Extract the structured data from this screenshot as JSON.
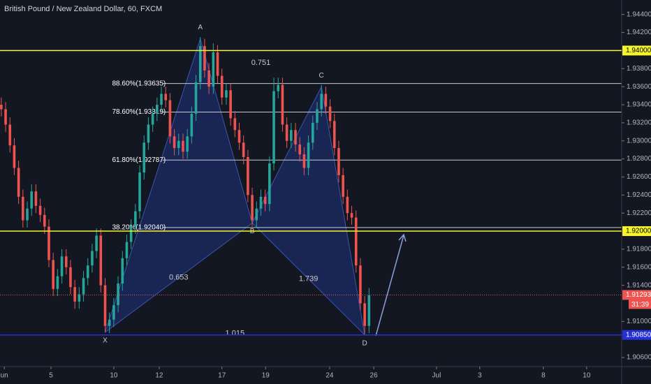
{
  "chart_data": {
    "type": "candlestick",
    "title": "British Pound / New Zealand Dollar, 60, FXCM",
    "up_color": "#26a69a",
    "down_color": "#ef5350",
    "open": [
      1.934,
      1.9335,
      1.9318,
      1.9295,
      1.927,
      1.9238,
      1.9212,
      1.9225,
      1.9244,
      1.9228,
      1.9218,
      1.9205,
      1.9168,
      1.9136,
      1.915,
      1.9172,
      1.916,
      1.9138,
      1.9122,
      1.913,
      1.9148,
      1.9162,
      1.9178,
      1.9195,
      1.914,
      1.9095,
      1.9102,
      1.9118,
      1.9142,
      1.917,
      1.9188,
      1.9205,
      1.9222,
      1.9265,
      1.9298,
      1.9318,
      1.933,
      1.934,
      1.9352,
      1.9345,
      1.9305,
      1.9292,
      1.93,
      1.9288,
      1.9305,
      1.933,
      1.9365,
      1.9405,
      1.9378,
      1.936,
      1.9398,
      1.9372,
      1.9348,
      1.9356,
      1.9325,
      1.9312,
      1.9298,
      1.9282,
      1.924,
      1.9212,
      1.9225,
      1.9238,
      1.923,
      1.9275,
      1.9355,
      1.9362,
      1.9318,
      1.93,
      1.9312,
      1.9296,
      1.9285,
      1.927,
      1.9298,
      1.932,
      1.9335,
      1.9352,
      1.9338,
      1.9322,
      1.9292,
      1.9262,
      1.9238,
      1.922,
      1.9215,
      1.9162,
      1.912,
      1.9095
    ],
    "high": [
      1.9348,
      1.9343,
      1.9326,
      1.9303,
      1.9278,
      1.9246,
      1.9233,
      1.9252,
      1.9252,
      1.9236,
      1.9226,
      1.9213,
      1.9176,
      1.9158,
      1.918,
      1.918,
      1.9168,
      1.9146,
      1.9138,
      1.9156,
      1.917,
      1.9186,
      1.9203,
      1.9203,
      1.9148,
      1.911,
      1.9126,
      1.915,
      1.9178,
      1.9196,
      1.9213,
      1.923,
      1.9273,
      1.9306,
      1.9326,
      1.9338,
      1.9348,
      1.936,
      1.936,
      1.9353,
      1.9313,
      1.9308,
      1.9308,
      1.9313,
      1.9338,
      1.9373,
      1.9415,
      1.9413,
      1.9386,
      1.9408,
      1.9406,
      1.938,
      1.9364,
      1.9364,
      1.9333,
      1.932,
      1.9306,
      1.929,
      1.9248,
      1.9233,
      1.9246,
      1.9246,
      1.9283,
      1.937,
      1.937,
      1.937,
      1.9326,
      1.932,
      1.932,
      1.9304,
      1.9293,
      1.9306,
      1.9328,
      1.9343,
      1.9362,
      1.936,
      1.9346,
      1.933,
      1.93,
      1.927,
      1.9246,
      1.9228,
      1.9223,
      1.917,
      1.9128,
      1.9137
    ],
    "low": [
      1.9327,
      1.931,
      1.9287,
      1.9262,
      1.923,
      1.9204,
      1.9204,
      1.9217,
      1.922,
      1.921,
      1.9197,
      1.916,
      1.9128,
      1.9128,
      1.9142,
      1.9152,
      1.913,
      1.9114,
      1.9114,
      1.9122,
      1.914,
      1.9154,
      1.917,
      1.9132,
      1.9088,
      1.9087,
      1.9094,
      1.911,
      1.9134,
      1.9162,
      1.918,
      1.9197,
      1.9214,
      1.9257,
      1.929,
      1.931,
      1.9322,
      1.9332,
      1.9337,
      1.9297,
      1.9284,
      1.9284,
      1.928,
      1.928,
      1.9297,
      1.9322,
      1.9357,
      1.937,
      1.9352,
      1.9352,
      1.9364,
      1.934,
      1.934,
      1.9317,
      1.9304,
      1.929,
      1.9274,
      1.9232,
      1.9205,
      1.9204,
      1.9217,
      1.9222,
      1.9222,
      1.9267,
      1.9347,
      1.931,
      1.9292,
      1.9292,
      1.9288,
      1.9277,
      1.9262,
      1.9262,
      1.929,
      1.9312,
      1.9327,
      1.933,
      1.9314,
      1.9284,
      1.9254,
      1.923,
      1.9212,
      1.9207,
      1.9154,
      1.9112,
      1.9086,
      1.9087
    ],
    "close": [
      1.9335,
      1.9318,
      1.9295,
      1.927,
      1.9238,
      1.9212,
      1.9225,
      1.9244,
      1.9228,
      1.9218,
      1.9205,
      1.9168,
      1.9136,
      1.915,
      1.9172,
      1.916,
      1.9138,
      1.9122,
      1.913,
      1.9148,
      1.9162,
      1.9178,
      1.9195,
      1.914,
      1.9095,
      1.9102,
      1.9118,
      1.9142,
      1.917,
      1.9188,
      1.9205,
      1.9222,
      1.9265,
      1.9298,
      1.9318,
      1.933,
      1.934,
      1.9352,
      1.9345,
      1.9305,
      1.9292,
      1.93,
      1.9288,
      1.9305,
      1.933,
      1.9365,
      1.9405,
      1.9378,
      1.936,
      1.9398,
      1.9372,
      1.9348,
      1.9356,
      1.9325,
      1.9312,
      1.9298,
      1.9282,
      1.924,
      1.9212,
      1.9225,
      1.9238,
      1.923,
      1.9275,
      1.9355,
      1.9362,
      1.9318,
      1.93,
      1.9312,
      1.9296,
      1.9285,
      1.927,
      1.9298,
      1.932,
      1.9335,
      1.9352,
      1.9338,
      1.9322,
      1.9292,
      1.9262,
      1.9238,
      1.922,
      1.9215,
      1.9162,
      1.912,
      1.9095,
      1.9129
    ],
    "xlim": [
      -0.3,
      143.4
    ],
    "xticks": [
      {
        "value": 0.7,
        "label": "un"
      },
      {
        "value": 11.5,
        "label": "5"
      },
      {
        "value": 26.0,
        "label": "10"
      },
      {
        "value": 36.5,
        "label": "12"
      },
      {
        "value": 51.0,
        "label": "17"
      },
      {
        "value": 61.1,
        "label": "19"
      },
      {
        "value": 75.9,
        "label": "24"
      },
      {
        "value": 86.1,
        "label": "26"
      },
      {
        "value": 100.6,
        "label": "Jul"
      },
      {
        "value": 110.6,
        "label": "3"
      },
      {
        "value": 125.3,
        "label": "8"
      },
      {
        "value": 135.3,
        "label": "10"
      }
    ],
    "ylim": [
      1.905,
      1.9456
    ],
    "yticks": [
      {
        "value": 1.944,
        "label": "1.94400"
      },
      {
        "value": 1.942,
        "label": "1.94200"
      },
      {
        "value": 1.938,
        "label": "1.93800"
      },
      {
        "value": 1.936,
        "label": "1.93600"
      },
      {
        "value": 1.934,
        "label": "1.93400"
      },
      {
        "value": 1.932,
        "label": "1.93200"
      },
      {
        "value": 1.93,
        "label": "1.93000"
      },
      {
        "value": 1.928,
        "label": "1.92800"
      },
      {
        "value": 1.926,
        "label": "1.92600"
      },
      {
        "value": 1.924,
        "label": "1.92400"
      },
      {
        "value": 1.922,
        "label": "1.92200"
      },
      {
        "value": 1.918,
        "label": "1.91800"
      },
      {
        "value": 1.916,
        "label": "1.91600"
      },
      {
        "value": 1.914,
        "label": "1.91400"
      },
      {
        "value": 1.91,
        "label": "1.91000"
      },
      {
        "value": 1.906,
        "label": "1.90600"
      }
    ],
    "levels": [
      {
        "value": 1.94,
        "label": "1.94000",
        "color": "#f5f52a"
      },
      {
        "value": 1.92,
        "label": "1.92000",
        "color": "#f5f52a"
      },
      {
        "value": 1.9085,
        "label": "1.90850",
        "color": "#2430d6"
      }
    ],
    "price_line": {
      "value": 1.91293,
      "label": "1.91293",
      "countdown": "31:39",
      "color": "#ef5350"
    },
    "fib_levels": [
      {
        "value": 1.93635,
        "label": "88.60%(1.93635)"
      },
      {
        "value": 1.93319,
        "label": "78.60%(1.93319)"
      },
      {
        "value": 1.92787,
        "label": "61.80%(1.92787)"
      },
      {
        "value": 1.9204,
        "label": "38.20%(1.92040)"
      }
    ],
    "pattern_points": [
      {
        "label": "X",
        "x": 24,
        "value": 1.9088
      },
      {
        "label": "A",
        "x": 46,
        "value": 1.9413
      },
      {
        "label": "B",
        "x": 58,
        "value": 1.9209
      },
      {
        "label": "C",
        "x": 74,
        "value": 1.936
      },
      {
        "label": "D",
        "x": 84,
        "value": 1.9085
      }
    ],
    "ratios": [
      {
        "label": "0.751",
        "between": [
          "A",
          "C"
        ]
      },
      {
        "label": "0.653",
        "between": [
          "X",
          "B"
        ]
      },
      {
        "label": "1.739",
        "between": [
          "B",
          "D"
        ]
      },
      {
        "label": "1.015",
        "between": [
          "X",
          "D"
        ]
      }
    ]
  }
}
